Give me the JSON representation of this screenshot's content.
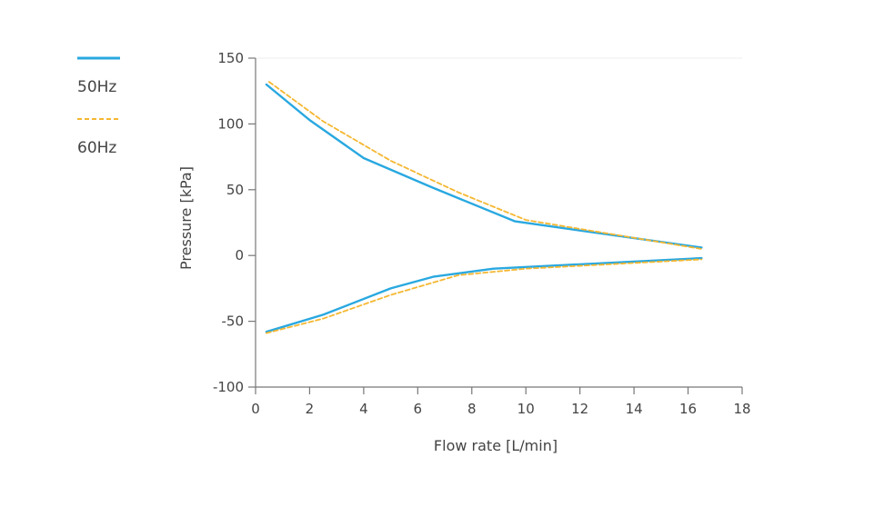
{
  "chart_data": {
    "type": "line",
    "title": "",
    "xlabel": "Flow rate [L/min]",
    "ylabel": "Pressure [kPa]",
    "xlim": [
      0,
      18
    ],
    "ylim": [
      -100,
      150
    ],
    "xticks": [
      0,
      2,
      4,
      6,
      8,
      10,
      12,
      14,
      16,
      18
    ],
    "yticks": [
      -100,
      -50,
      0,
      50,
      100,
      150
    ],
    "legend_position": "top-left",
    "series": [
      {
        "name": "50Hz",
        "color": "#29a8e0",
        "style": "solid",
        "segments": [
          {
            "x": [
              0.4,
              2.0,
              4.0,
              6.5,
              9.6,
              16.5
            ],
            "y": [
              130,
              103,
              74,
              52,
              26,
              6
            ]
          },
          {
            "x": [
              0.4,
              2.5,
              5.0,
              6.6,
              8.8,
              16.5
            ],
            "y": [
              -58,
              -45,
              -25,
              -16,
              -10,
              -2
            ]
          }
        ]
      },
      {
        "name": "60Hz",
        "color": "#f5b731",
        "style": "dashed",
        "segments": [
          {
            "x": [
              0.5,
              2.5,
              5.0,
              7.5,
              10.0,
              16.5
            ],
            "y": [
              132,
              102,
              72,
              48,
              27,
              5
            ]
          },
          {
            "x": [
              0.4,
              2.5,
              5.0,
              7.5,
              10.0,
              16.5
            ],
            "y": [
              -59,
              -48,
              -30,
              -15,
              -10,
              -3
            ]
          }
        ]
      }
    ]
  }
}
